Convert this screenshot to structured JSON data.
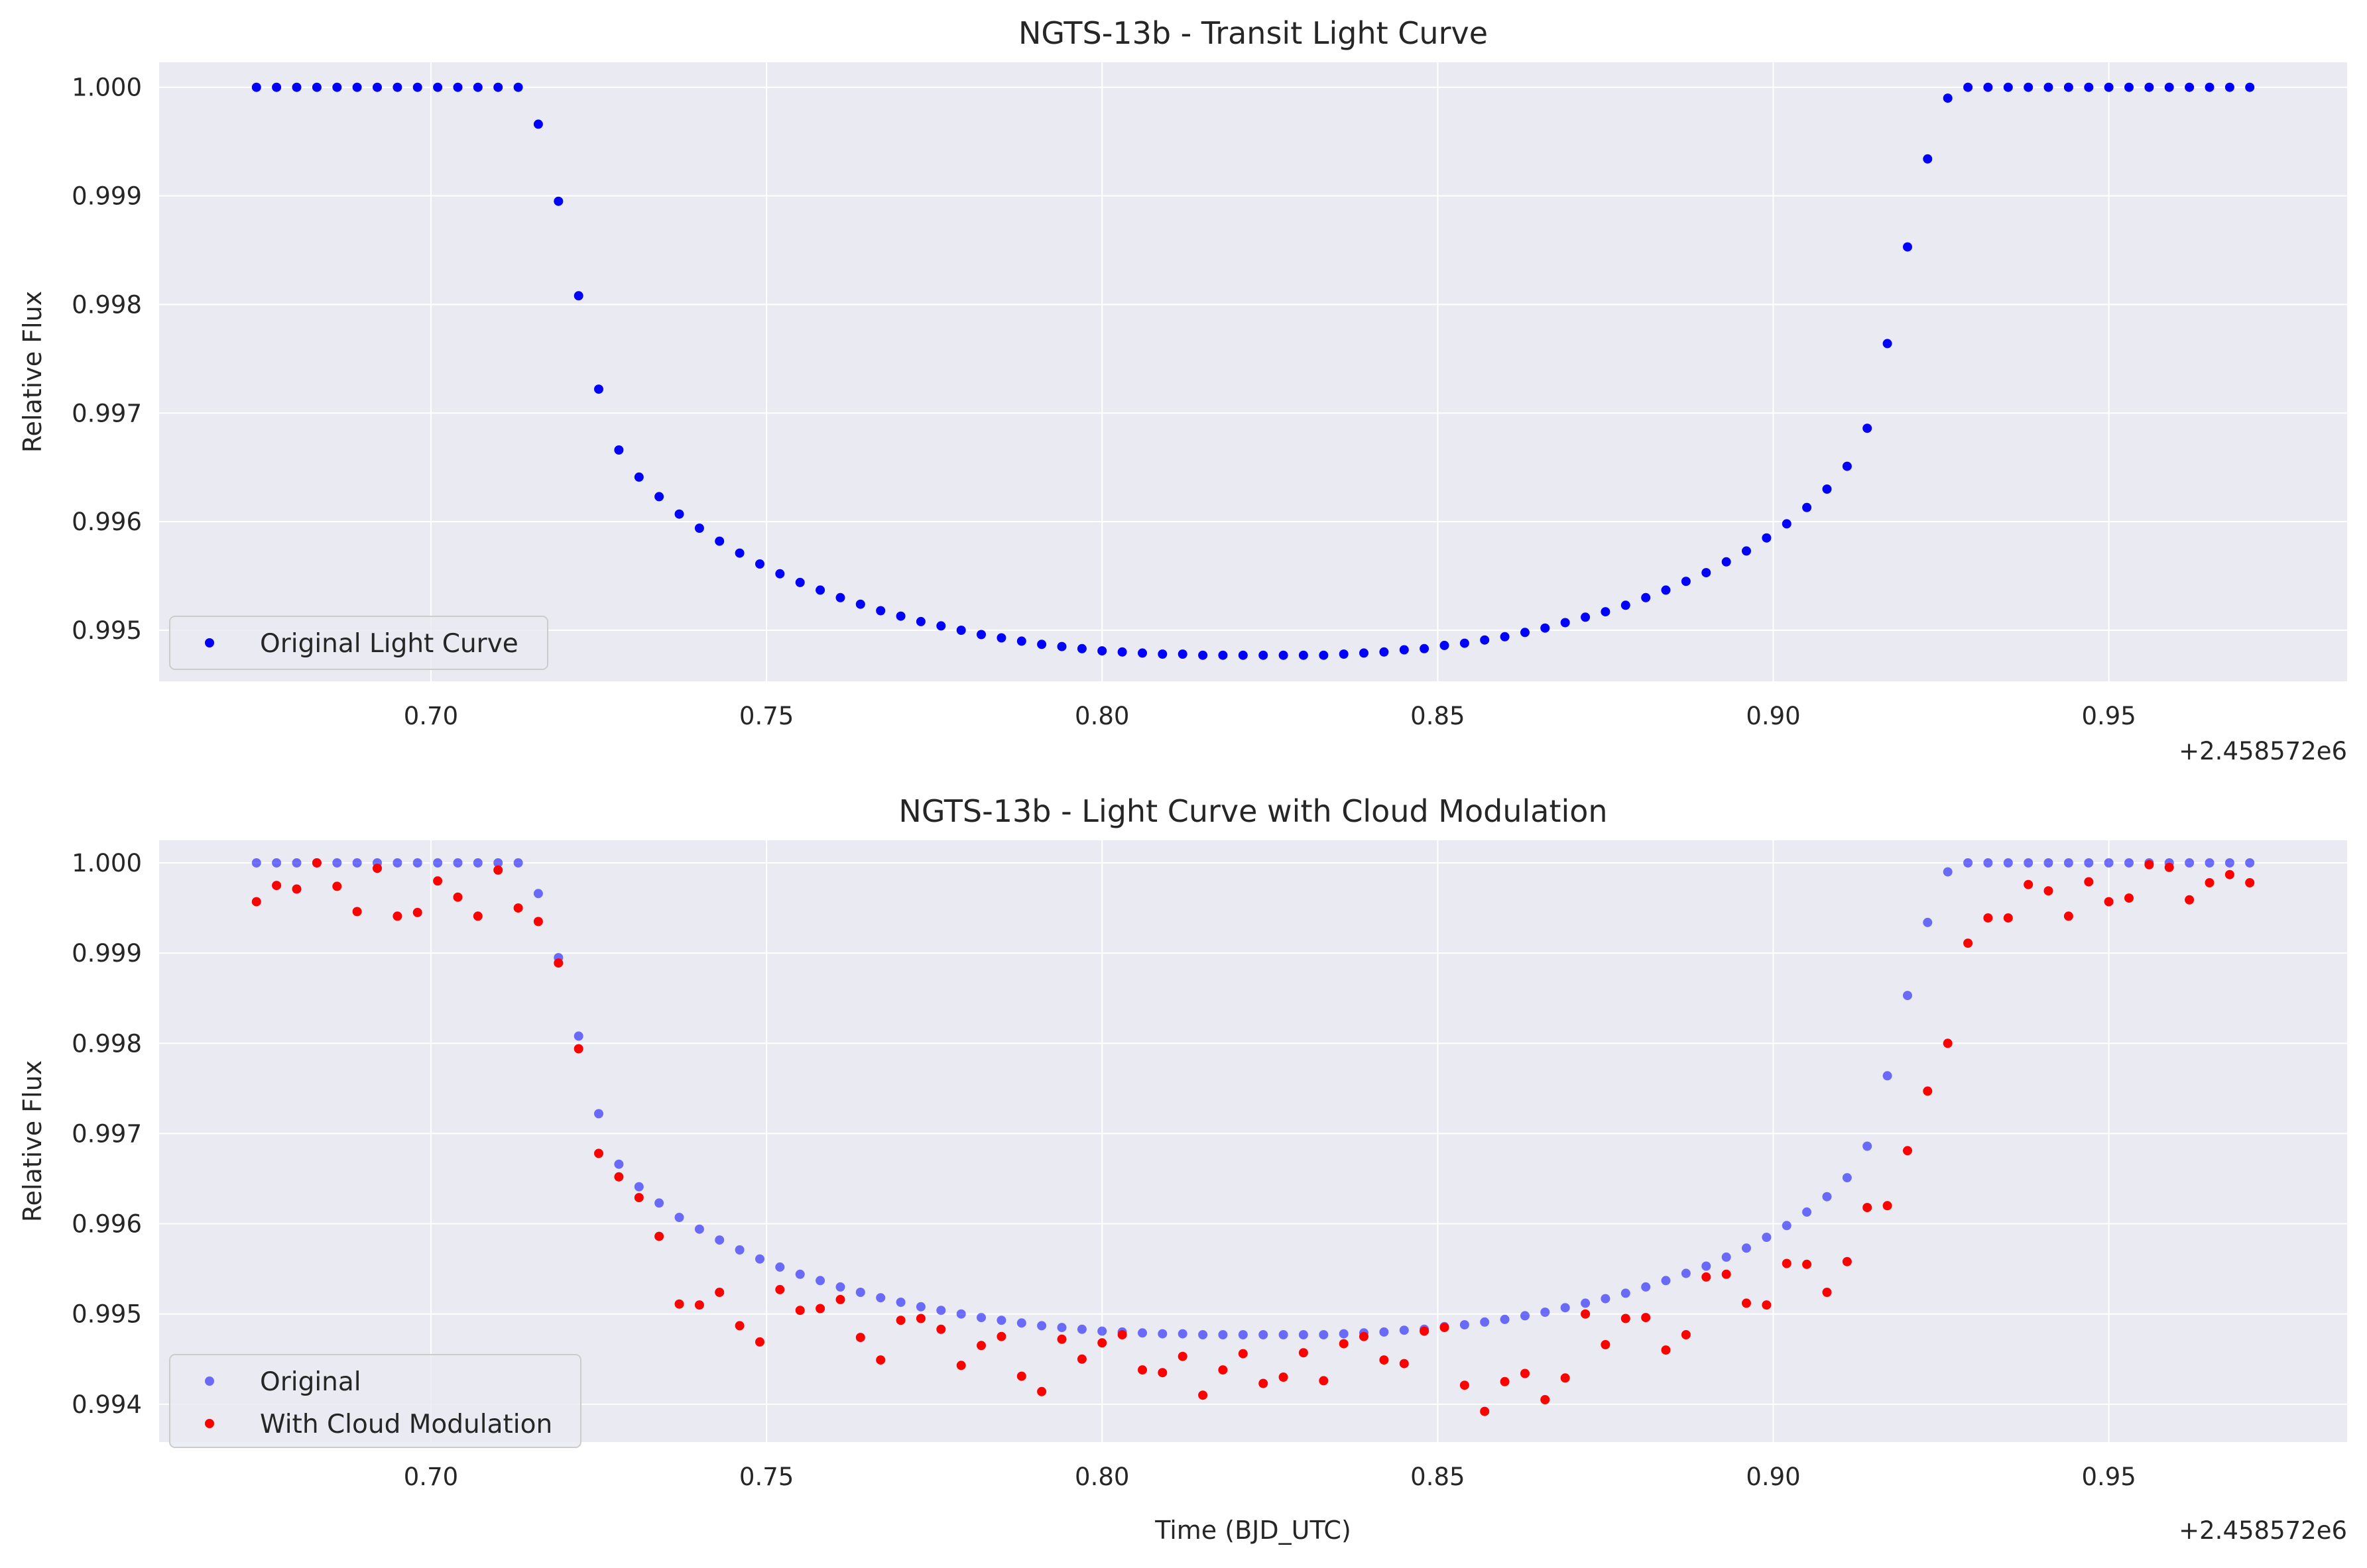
{
  "chart_data": [
    {
      "type": "scatter",
      "title": "NGTS-13b - Transit Light Curve",
      "xlabel": "",
      "ylabel": "Relative Flux",
      "x_offset_label": "+2.458572e6",
      "xlim": [
        0.6595,
        0.9855
      ],
      "ylim": [
        0.99453,
        1.00023
      ],
      "xticks": [
        0.7,
        0.75,
        0.8,
        0.85,
        0.9,
        0.95
      ],
      "xtick_labels": [
        "0.70",
        "0.75",
        "0.80",
        "0.85",
        "0.90",
        "0.95"
      ],
      "yticks": [
        0.995,
        0.996,
        0.997,
        0.998,
        0.999,
        1.0
      ],
      "ytick_labels": [
        "0.995",
        "0.996",
        "0.997",
        "0.998",
        "0.999",
        "1.000"
      ],
      "grid": true,
      "legend_position": "lower-left",
      "series": [
        {
          "name": "Original Light Curve",
          "color": "#0000ff",
          "opacity": 1,
          "x": [
            0.674,
            0.677,
            0.68,
            0.683,
            0.686,
            0.689,
            0.692,
            0.695,
            0.698,
            0.701,
            0.704,
            0.707,
            0.71,
            0.713,
            0.716,
            0.719,
            0.722,
            0.725,
            0.728,
            0.731,
            0.734,
            0.737,
            0.74,
            0.743,
            0.746,
            0.749,
            0.752,
            0.755,
            0.758,
            0.761,
            0.764,
            0.767,
            0.77,
            0.773,
            0.776,
            0.779,
            0.782,
            0.785,
            0.788,
            0.791,
            0.794,
            0.797,
            0.8,
            0.803,
            0.806,
            0.809,
            0.812,
            0.815,
            0.818,
            0.821,
            0.824,
            0.827,
            0.83,
            0.833,
            0.836,
            0.839,
            0.842,
            0.845,
            0.848,
            0.851,
            0.854,
            0.857,
            0.86,
            0.863,
            0.866,
            0.869,
            0.872,
            0.875,
            0.878,
            0.881,
            0.884,
            0.887,
            0.89,
            0.893,
            0.896,
            0.899,
            0.902,
            0.905,
            0.908,
            0.911,
            0.914,
            0.917,
            0.92,
            0.923,
            0.926,
            0.929,
            0.932,
            0.935,
            0.938,
            0.941,
            0.944,
            0.947,
            0.95,
            0.953,
            0.956,
            0.959,
            0.962,
            0.965,
            0.968,
            0.971
          ],
          "y": [
            1.0,
            1.0,
            1.0,
            1.0,
            1.0,
            1.0,
            1.0,
            1.0,
            1.0,
            1.0,
            1.0,
            1.0,
            1.0,
            1.0,
            0.99966,
            0.99895,
            0.99808,
            0.99722,
            0.99666,
            0.99641,
            0.99623,
            0.99607,
            0.99594,
            0.99582,
            0.99571,
            0.99561,
            0.99552,
            0.99544,
            0.99537,
            0.9953,
            0.99524,
            0.99518,
            0.99513,
            0.99508,
            0.99504,
            0.995,
            0.99496,
            0.99493,
            0.9949,
            0.99487,
            0.99485,
            0.99483,
            0.99481,
            0.9948,
            0.99479,
            0.99478,
            0.99478,
            0.99477,
            0.99477,
            0.99477,
            0.99477,
            0.99477,
            0.99477,
            0.99477,
            0.99478,
            0.99479,
            0.9948,
            0.99482,
            0.99483,
            0.99486,
            0.99488,
            0.99491,
            0.99494,
            0.99498,
            0.99502,
            0.99507,
            0.99512,
            0.99517,
            0.99523,
            0.9953,
            0.99537,
            0.99545,
            0.99553,
            0.99563,
            0.99573,
            0.99585,
            0.99598,
            0.99613,
            0.9963,
            0.99651,
            0.99686,
            0.99764,
            0.99853,
            0.99934,
            0.9999,
            1.0,
            1.0,
            1.0,
            1.0,
            1.0,
            1.0,
            1.0,
            1.0,
            1.0,
            1.0,
            1.0,
            1.0,
            1.0,
            1.0,
            1.0
          ]
        }
      ]
    },
    {
      "type": "scatter",
      "title": "NGTS-13b - Light Curve with Cloud Modulation",
      "xlabel": "Time (BJD_UTC)",
      "ylabel": "Relative Flux",
      "x_offset_label": "+2.458572e6",
      "xlim": [
        0.6595,
        0.9855
      ],
      "ylim": [
        0.99358,
        1.00025
      ],
      "xticks": [
        0.7,
        0.75,
        0.8,
        0.85,
        0.9,
        0.95
      ],
      "xtick_labels": [
        "0.70",
        "0.75",
        "0.80",
        "0.85",
        "0.90",
        "0.95"
      ],
      "yticks": [
        0.994,
        0.995,
        0.996,
        0.997,
        0.998,
        0.999,
        1.0
      ],
      "ytick_labels": [
        "0.994",
        "0.995",
        "0.996",
        "0.997",
        "0.998",
        "0.999",
        "1.000"
      ],
      "grid": true,
      "legend_position": "lower-left",
      "series": [
        {
          "name": "Original",
          "color": "#0000ff",
          "opacity": 0.55,
          "x": [
            0.674,
            0.677,
            0.68,
            0.683,
            0.686,
            0.689,
            0.692,
            0.695,
            0.698,
            0.701,
            0.704,
            0.707,
            0.71,
            0.713,
            0.716,
            0.719,
            0.722,
            0.725,
            0.728,
            0.731,
            0.734,
            0.737,
            0.74,
            0.743,
            0.746,
            0.749,
            0.752,
            0.755,
            0.758,
            0.761,
            0.764,
            0.767,
            0.77,
            0.773,
            0.776,
            0.779,
            0.782,
            0.785,
            0.788,
            0.791,
            0.794,
            0.797,
            0.8,
            0.803,
            0.806,
            0.809,
            0.812,
            0.815,
            0.818,
            0.821,
            0.824,
            0.827,
            0.83,
            0.833,
            0.836,
            0.839,
            0.842,
            0.845,
            0.848,
            0.851,
            0.854,
            0.857,
            0.86,
            0.863,
            0.866,
            0.869,
            0.872,
            0.875,
            0.878,
            0.881,
            0.884,
            0.887,
            0.89,
            0.893,
            0.896,
            0.899,
            0.902,
            0.905,
            0.908,
            0.911,
            0.914,
            0.917,
            0.92,
            0.923,
            0.926,
            0.929,
            0.932,
            0.935,
            0.938,
            0.941,
            0.944,
            0.947,
            0.95,
            0.953,
            0.956,
            0.959,
            0.962,
            0.965,
            0.968,
            0.971
          ],
          "y": [
            1.0,
            1.0,
            1.0,
            1.0,
            1.0,
            1.0,
            1.0,
            1.0,
            1.0,
            1.0,
            1.0,
            1.0,
            1.0,
            1.0,
            0.99966,
            0.99895,
            0.99808,
            0.99722,
            0.99666,
            0.99641,
            0.99623,
            0.99607,
            0.99594,
            0.99582,
            0.99571,
            0.99561,
            0.99552,
            0.99544,
            0.99537,
            0.9953,
            0.99524,
            0.99518,
            0.99513,
            0.99508,
            0.99504,
            0.995,
            0.99496,
            0.99493,
            0.9949,
            0.99487,
            0.99485,
            0.99483,
            0.99481,
            0.9948,
            0.99479,
            0.99478,
            0.99478,
            0.99477,
            0.99477,
            0.99477,
            0.99477,
            0.99477,
            0.99477,
            0.99477,
            0.99478,
            0.99479,
            0.9948,
            0.99482,
            0.99483,
            0.99486,
            0.99488,
            0.99491,
            0.99494,
            0.99498,
            0.99502,
            0.99507,
            0.99512,
            0.99517,
            0.99523,
            0.9953,
            0.99537,
            0.99545,
            0.99553,
            0.99563,
            0.99573,
            0.99585,
            0.99598,
            0.99613,
            0.9963,
            0.99651,
            0.99686,
            0.99764,
            0.99853,
            0.99934,
            0.9999,
            1.0,
            1.0,
            1.0,
            1.0,
            1.0,
            1.0,
            1.0,
            1.0,
            1.0,
            1.0,
            1.0,
            1.0,
            1.0,
            1.0,
            1.0
          ]
        },
        {
          "name": "With Cloud Modulation",
          "color": "#ff0000",
          "opacity": 1,
          "x": [
            0.674,
            0.677,
            0.68,
            0.683,
            0.686,
            0.689,
            0.692,
            0.695,
            0.698,
            0.701,
            0.704,
            0.707,
            0.71,
            0.713,
            0.716,
            0.719,
            0.722,
            0.725,
            0.728,
            0.731,
            0.734,
            0.737,
            0.74,
            0.743,
            0.746,
            0.749,
            0.752,
            0.755,
            0.758,
            0.761,
            0.764,
            0.767,
            0.77,
            0.773,
            0.776,
            0.779,
            0.782,
            0.785,
            0.788,
            0.791,
            0.794,
            0.797,
            0.8,
            0.803,
            0.806,
            0.809,
            0.812,
            0.815,
            0.818,
            0.821,
            0.824,
            0.827,
            0.83,
            0.833,
            0.836,
            0.839,
            0.842,
            0.845,
            0.848,
            0.851,
            0.854,
            0.857,
            0.86,
            0.863,
            0.866,
            0.869,
            0.872,
            0.875,
            0.878,
            0.881,
            0.884,
            0.887,
            0.89,
            0.893,
            0.896,
            0.899,
            0.902,
            0.905,
            0.908,
            0.911,
            0.914,
            0.917,
            0.92,
            0.923,
            0.926,
            0.929,
            0.932,
            0.935,
            0.938,
            0.941,
            0.944,
            0.947,
            0.95,
            0.953,
            0.956,
            0.959,
            0.962,
            0.965,
            0.968,
            0.971
          ],
          "y": [
            0.99957,
            0.99975,
            0.99971,
            1.0,
            0.99974,
            0.99946,
            0.99994,
            0.99941,
            0.99945,
            0.9998,
            0.99962,
            0.99941,
            0.99992,
            0.9995,
            0.99935,
            0.99889,
            0.99794,
            0.99678,
            0.99652,
            0.99629,
            0.99586,
            0.99511,
            0.9951,
            0.99524,
            0.99487,
            0.99469,
            0.99527,
            0.99504,
            0.99506,
            0.99516,
            0.99474,
            0.99449,
            0.99493,
            0.99495,
            0.99483,
            0.99443,
            0.99465,
            0.99475,
            0.99431,
            0.99414,
            0.99472,
            0.9945,
            0.99468,
            0.99477,
            0.99438,
            0.99435,
            0.99453,
            0.9941,
            0.99438,
            0.99456,
            0.99423,
            0.9943,
            0.99457,
            0.99426,
            0.99467,
            0.99475,
            0.99449,
            0.99445,
            0.99481,
            0.99485,
            0.99421,
            0.99392,
            0.99425,
            0.99434,
            0.99405,
            0.99429,
            0.995,
            0.99466,
            0.99495,
            0.99496,
            0.9946,
            0.99477,
            0.99541,
            0.99544,
            0.99512,
            0.9951,
            0.99556,
            0.99555,
            0.99524,
            0.99558,
            0.99618,
            0.9962,
            0.99681,
            0.99747,
            0.998,
            0.99911,
            0.99939,
            0.99939,
            0.99976,
            0.99969,
            0.99941,
            0.99979,
            0.99957,
            0.99961,
            0.99998,
            0.99995,
            0.99959,
            0.99978,
            0.99987,
            0.99978
          ]
        }
      ]
    }
  ]
}
